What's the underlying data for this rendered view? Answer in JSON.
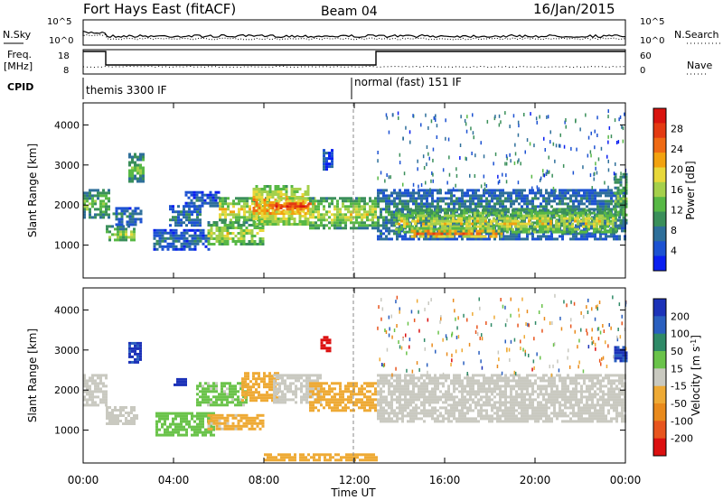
{
  "header": {
    "station": "Fort Hays East (fitACF)",
    "beam": "Beam 04",
    "date": "16/Jan/2015"
  },
  "noise_panel": {
    "left_label": "N.Sky",
    "left_ticks": [
      "10^5",
      "10^0"
    ],
    "right_label": "N.Search",
    "right_ticks": [
      "10^5",
      "10^0"
    ]
  },
  "freq_panel": {
    "left_label_line1": "Freq.",
    "left_label_line2": "[MHz]",
    "left_ticks": [
      "18",
      "8"
    ],
    "right_label": "Nave",
    "right_ticks": [
      "60",
      "0"
    ]
  },
  "cpid": {
    "label": "CPID",
    "segments": [
      {
        "text": "themis 3300 IF",
        "start_hour": 0
      },
      {
        "text": "normal (fast) 151 IF",
        "start_hour": 12.0
      }
    ]
  },
  "colors": {
    "power_scale": [
      "#0a1ff0",
      "#1c52d2",
      "#2e6f9a",
      "#3a8f5a",
      "#57b845",
      "#a5d04b",
      "#e8d83a",
      "#f2a20f",
      "#ef6a14",
      "#e43a12",
      "#d9140f"
    ],
    "velocity_scale": [
      "#1c32b8",
      "#2a5fbf",
      "#2f8a67",
      "#6ac34a",
      "#c9c9c0",
      "#eeaa35",
      "#e98a1c",
      "#e8551e",
      "#dc1010"
    ]
  },
  "chart_data": [
    {
      "type": "heatmap",
      "title": "Power",
      "ylabel": "Slant Range [km]",
      "xlabel": "Time UT",
      "x_ticks": [
        "00:00",
        "04:00",
        "08:00",
        "12:00",
        "16:00",
        "20:00",
        "00:00"
      ],
      "y_ticks": [
        "1000",
        "2000",
        "3000",
        "4000"
      ],
      "xlim": [
        0,
        24
      ],
      "ylim": [
        180,
        4550
      ],
      "colorbar_label": "Power [dB]",
      "colorbar_ticks": [
        "4",
        "8",
        "12",
        "16",
        "20",
        "24",
        "28"
      ],
      "scale_range": [
        0,
        32
      ],
      "echo_bands": [
        {
          "t0": 0.0,
          "t1": 1.1,
          "r0": 1700,
          "r1": 2400,
          "level": 14
        },
        {
          "t0": 1.0,
          "t1": 2.3,
          "r0": 1100,
          "r1": 1500,
          "level": 16
        },
        {
          "t0": 1.3,
          "t1": 2.6,
          "r0": 1500,
          "r1": 1950,
          "level": 8
        },
        {
          "t0": 2.0,
          "t1": 2.7,
          "r0": 2600,
          "r1": 3300,
          "level": 14
        },
        {
          "t0": 3.1,
          "t1": 5.6,
          "r0": 900,
          "r1": 1400,
          "level": 7
        },
        {
          "t0": 3.8,
          "t1": 5.2,
          "r0": 1500,
          "r1": 2000,
          "level": 8
        },
        {
          "t0": 4.5,
          "t1": 6.0,
          "r0": 1950,
          "r1": 2350,
          "level": 6
        },
        {
          "t0": 5.5,
          "t1": 8.0,
          "r0": 1000,
          "r1": 1600,
          "level": 18
        },
        {
          "t0": 6.0,
          "t1": 8.2,
          "r0": 1600,
          "r1": 2200,
          "level": 20
        },
        {
          "t0": 7.5,
          "t1": 10.0,
          "r0": 1500,
          "r1": 2500,
          "level": 24
        },
        {
          "t0": 8.5,
          "t1": 10.2,
          "r0": 1800,
          "r1": 2200,
          "level": 28
        },
        {
          "t0": 10.0,
          "t1": 13.1,
          "r0": 1450,
          "r1": 2200,
          "level": 18
        },
        {
          "t0": 10.6,
          "t1": 11.0,
          "r0": 2900,
          "r1": 3400,
          "level": 6
        },
        {
          "t0": 13.0,
          "t1": 24.0,
          "r0": 1150,
          "r1": 2400,
          "level": 10
        },
        {
          "t0": 13.8,
          "t1": 23.6,
          "r0": 1300,
          "r1": 1900,
          "level": 19
        },
        {
          "t0": 14.5,
          "t1": 18.5,
          "r0": 1200,
          "r1": 1450,
          "level": 26
        },
        {
          "t0": 23.5,
          "t1": 24.0,
          "r0": 1500,
          "r1": 2800,
          "level": 14
        }
      ]
    },
    {
      "type": "heatmap",
      "title": "Velocity",
      "ylabel": "Slant Range [km]",
      "xlabel": "Time UT",
      "x_ticks": [
        "00:00",
        "04:00",
        "08:00",
        "12:00",
        "16:00",
        "20:00",
        "00:00"
      ],
      "y_ticks": [
        "1000",
        "2000",
        "3000",
        "4000"
      ],
      "xlim": [
        0,
        24
      ],
      "ylim": [
        180,
        4550
      ],
      "colorbar_label": "Velocity [m s^-1]",
      "colorbar_ticks": [
        "200",
        "100",
        "50",
        "15",
        "-15",
        "-50",
        "-100",
        "-200"
      ],
      "scale_range": [
        250,
        -250
      ],
      "echo_bands": [
        {
          "t0": 0.0,
          "t1": 1.0,
          "r0": 1600,
          "r1": 2400,
          "level": 0
        },
        {
          "t0": 1.0,
          "t1": 2.4,
          "r0": 1150,
          "r1": 1600,
          "level": 0
        },
        {
          "t0": 2.0,
          "t1": 2.6,
          "r0": 2700,
          "r1": 3200,
          "level": 200
        },
        {
          "t0": 3.2,
          "t1": 5.8,
          "r0": 900,
          "r1": 1450,
          "level": 50
        },
        {
          "t0": 4.0,
          "t1": 4.5,
          "r0": 2100,
          "r1": 2300,
          "level": 220
        },
        {
          "t0": 5.0,
          "t1": 7.2,
          "r0": 1600,
          "r1": 2200,
          "level": 40
        },
        {
          "t0": 5.5,
          "t1": 8.0,
          "r0": 1000,
          "r1": 1400,
          "level": -40
        },
        {
          "t0": 7.0,
          "t1": 8.6,
          "r0": 1750,
          "r1": 2450,
          "level": -60
        },
        {
          "t0": 8.4,
          "t1": 10.5,
          "r0": 1700,
          "r1": 2400,
          "level": 0
        },
        {
          "t0": 10.0,
          "t1": 13.0,
          "r0": 1500,
          "r1": 2200,
          "level": -60
        },
        {
          "t0": 10.5,
          "t1": 10.9,
          "r0": 2950,
          "r1": 3350,
          "level": -230
        },
        {
          "t0": 13.0,
          "t1": 24.0,
          "r0": 1250,
          "r1": 2400,
          "level": 0
        },
        {
          "t0": 8.0,
          "t1": 13.0,
          "r0": 220,
          "r1": 420,
          "level": -60
        },
        {
          "t0": 23.5,
          "t1": 24.0,
          "r0": 2700,
          "r1": 3100,
          "level": 200
        }
      ]
    }
  ]
}
